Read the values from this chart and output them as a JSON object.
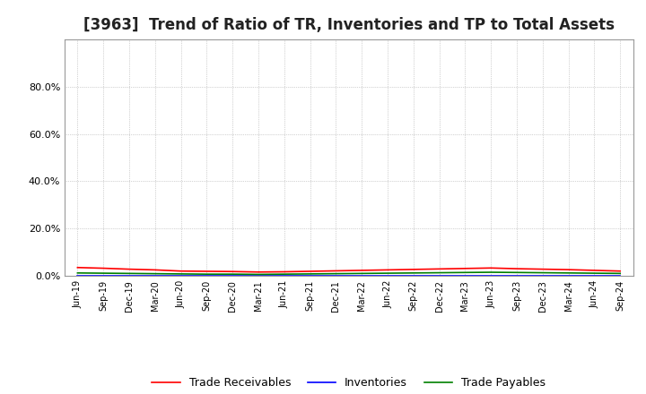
{
  "title": "[3963]  Trend of Ratio of TR, Inventories and TP to Total Assets",
  "x_labels": [
    "Jun-19",
    "Sep-19",
    "Dec-19",
    "Mar-20",
    "Jun-20",
    "Sep-20",
    "Dec-20",
    "Mar-21",
    "Jun-21",
    "Sep-21",
    "Dec-21",
    "Mar-22",
    "Jun-22",
    "Sep-22",
    "Dec-22",
    "Mar-23",
    "Jun-23",
    "Sep-23",
    "Dec-23",
    "Mar-24",
    "Jun-24",
    "Sep-24"
  ],
  "trade_receivables": [
    3.5,
    3.2,
    2.8,
    2.5,
    2.0,
    1.9,
    1.8,
    1.6,
    1.7,
    1.9,
    2.1,
    2.3,
    2.5,
    2.7,
    2.9,
    3.1,
    3.3,
    3.0,
    2.8,
    2.6,
    2.3,
    2.0
  ],
  "inventories": [
    0.1,
    0.1,
    0.1,
    0.1,
    0.1,
    0.1,
    0.1,
    0.1,
    0.1,
    0.1,
    0.1,
    0.1,
    0.1,
    0.1,
    0.1,
    0.1,
    0.1,
    0.1,
    0.1,
    0.1,
    0.1,
    0.1
  ],
  "trade_payables": [
    1.2,
    1.1,
    1.0,
    0.9,
    0.8,
    0.7,
    0.7,
    0.6,
    0.7,
    0.8,
    0.9,
    1.0,
    1.1,
    1.2,
    1.3,
    1.4,
    1.5,
    1.4,
    1.3,
    1.2,
    1.1,
    1.0
  ],
  "ylim": [
    0,
    100
  ],
  "yticks": [
    0,
    20,
    40,
    60,
    80
  ],
  "tr_color": "#ff0000",
  "inv_color": "#0000ff",
  "tp_color": "#008000",
  "grid_color": "#aaaaaa",
  "background_color": "#ffffff",
  "plot_bg_color": "#ffffff",
  "title_fontsize": 12,
  "legend_labels": [
    "Trade Receivables",
    "Inventories",
    "Trade Payables"
  ]
}
